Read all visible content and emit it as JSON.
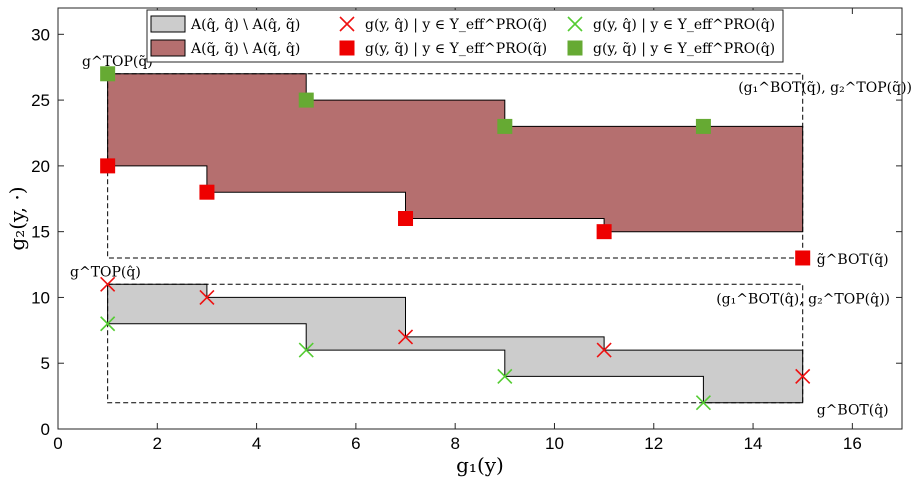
{
  "chart_data": {
    "type": "scatter",
    "xlabel": "g₁(y)",
    "ylabel": "g₂(y, ·)",
    "xlim": [
      0,
      17
    ],
    "ylim": [
      0,
      32
    ],
    "xticks": [
      "0",
      "2",
      "4",
      "6",
      "8",
      "10",
      "12",
      "14",
      "16"
    ],
    "yticks": [
      "0",
      "5",
      "10",
      "15",
      "20",
      "25",
      "30"
    ],
    "grid": false,
    "legend_position": "top-center",
    "regions": [
      {
        "name": "A(q̂, q̂) \\ A(q̂, q̃)",
        "color": "#cccccc",
        "upper_steps": [
          [
            1,
            11
          ],
          [
            3,
            11
          ],
          [
            3,
            10
          ],
          [
            7,
            10
          ],
          [
            7,
            7
          ],
          [
            11,
            7
          ],
          [
            11,
            6
          ],
          [
            15,
            6
          ],
          [
            15,
            2
          ]
        ],
        "lower_steps": [
          [
            1,
            8
          ],
          [
            5,
            8
          ],
          [
            5,
            6
          ],
          [
            9,
            6
          ],
          [
            9,
            4
          ],
          [
            13,
            4
          ],
          [
            13,
            2
          ],
          [
            15,
            2
          ]
        ]
      },
      {
        "name": "A(q̃, q̃) \\ A(q̃, q̂)",
        "color": "#b56f6f",
        "upper_steps": [
          [
            1,
            27
          ],
          [
            5,
            27
          ],
          [
            5,
            25
          ],
          [
            9,
            25
          ],
          [
            9,
            23
          ],
          [
            15,
            23
          ],
          [
            15,
            15
          ]
        ],
        "lower_steps": [
          [
            1,
            20
          ],
          [
            3,
            20
          ],
          [
            3,
            18
          ],
          [
            7,
            18
          ],
          [
            7,
            16
          ],
          [
            11,
            16
          ],
          [
            11,
            15
          ],
          [
            15,
            15
          ]
        ]
      }
    ],
    "series": [
      {
        "name": "g(y, q̂) | y ∈ Y_eff^PRO(q̃)",
        "marker": "x",
        "color": "#ee1111",
        "x": [
          1,
          3,
          7,
          11,
          15
        ],
        "y": [
          11,
          10,
          7,
          6,
          4
        ]
      },
      {
        "name": "g(y, q̂) | y ∈ Y_eff^PRO(q̂)",
        "marker": "x",
        "color": "#55cc33",
        "x": [
          1,
          5,
          9,
          13
        ],
        "y": [
          8,
          6,
          4,
          2
        ]
      },
      {
        "name": "g(y, q̃) | y ∈ Y_eff^PRO(q̃)",
        "marker": "square",
        "color": "#ee0000",
        "x": [
          1,
          3,
          7,
          11,
          15
        ],
        "y": [
          20,
          18,
          16,
          15,
          13
        ]
      },
      {
        "name": "g(y, q̃) | y ∈ Y_eff^PRO(q̂)",
        "marker": "square",
        "color": "#66aa33",
        "x": [
          1,
          5,
          9,
          13
        ],
        "y": [
          27,
          25,
          23,
          23
        ]
      }
    ],
    "dashed_boxes": [
      {
        "x": [
          1,
          15
        ],
        "y": [
          13,
          27
        ]
      },
      {
        "x": [
          1,
          15
        ],
        "y": [
          2,
          11
        ]
      }
    ],
    "annotations": [
      {
        "text": "g^TOP(q̃)",
        "x": 1,
        "y": 27,
        "place": "left"
      },
      {
        "text": "(g₁^BOT(q̃), g₂^TOP(q̃))",
        "x": 15,
        "y": 27,
        "place": "right"
      },
      {
        "text": "g̃^BOT(q̃)",
        "x": 15,
        "y": 13,
        "place": "right"
      },
      {
        "text": "g^TOP(q̂)",
        "x": 1,
        "y": 11,
        "place": "left"
      },
      {
        "text": "(g₁^BOT(q̂), g₂^TOP(q̂))",
        "x": 15,
        "y": 11,
        "place": "right"
      },
      {
        "text": "g^BOT(q̂)",
        "x": 15,
        "y": 2,
        "place": "right"
      }
    ]
  }
}
